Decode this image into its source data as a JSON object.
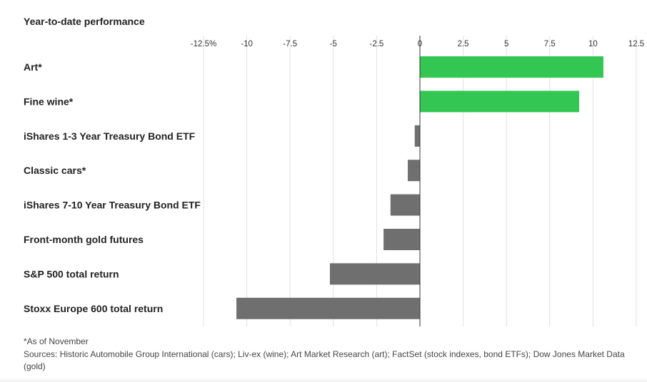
{
  "chart_data": {
    "type": "bar",
    "orientation": "horizontal",
    "title": "Year-to-date performance",
    "xlabel": "",
    "ylabel": "",
    "xlim": [
      -12.5,
      12.5
    ],
    "ticks": [
      -12.5,
      -10,
      -7.5,
      -5,
      -2.5,
      0,
      2.5,
      5,
      7.5,
      10,
      12.5
    ],
    "tick_labels": [
      "-12.5%",
      "-10",
      "-7.5",
      "-5",
      "-2.5",
      "0",
      "2.5",
      "5",
      "7.5",
      "10",
      "12.5"
    ],
    "categories": [
      "Art*",
      "Fine wine*",
      "iShares 1-3 Year Treasury Bond ETF",
      "Classic cars*",
      "iShares 7-10 Year Treasury Bond ETF",
      "Front-month gold futures",
      "S&P 500 total return",
      "Stoxx Europe 600 total return"
    ],
    "values": [
      10.6,
      9.2,
      -0.3,
      -0.7,
      -1.7,
      -2.1,
      -5.2,
      -10.6
    ],
    "grid": true,
    "legend": "none",
    "colors": {
      "positive": "#34c653",
      "negative": "#6f6f6f",
      "grid": "#e1e1e1",
      "zero_line": "#333333"
    }
  },
  "footnotes": {
    "as_of": "*As of November",
    "sources": "Sources: Historic Automobile Group International (cars); Liv-ex (wine); Art Market Research (art); FactSet (stock indexes, bond ETFs); Dow Jones Market Data (gold)"
  }
}
